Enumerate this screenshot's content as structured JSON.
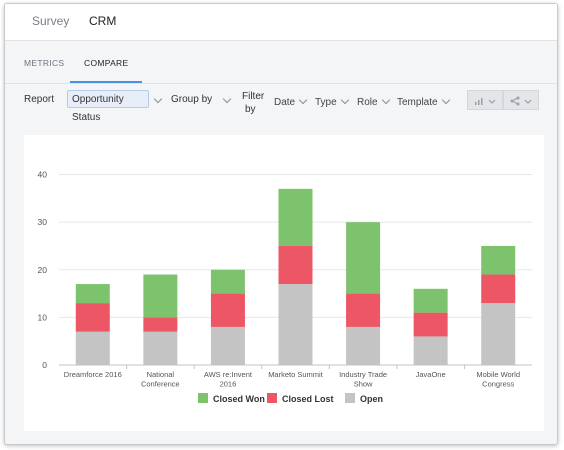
{
  "top_tabs": [
    "Survey",
    "CRM"
  ],
  "sub_tabs": [
    "METRICS",
    "COMPARE"
  ],
  "toolbar": {
    "report_label": "Report",
    "report_value": "Opportunity Status",
    "group_by_label": "Group by",
    "filter_label_line1": "Filter",
    "filter_label_line2": "by",
    "filters": [
      "Date",
      "Type",
      "Role",
      "Template"
    ]
  },
  "icons": [
    "bar-chart-icon",
    "share-icon",
    "chevron-down-icon"
  ],
  "colors": {
    "won": "#7dc36e",
    "lost": "#ec5665",
    "open": "#c4c4c4",
    "accent": "#4a90e2"
  },
  "chart_data": {
    "type": "bar",
    "stacked": true,
    "categories": [
      "Dreamforce 2016",
      "National Conference",
      "AWS re:Invent 2016",
      "Marketo Summit",
      "Industry Trade Show",
      "JavaOne",
      "Mobile World Congress"
    ],
    "category_lines": [
      [
        "Dreamforce 2016"
      ],
      [
        "National",
        "Conference"
      ],
      [
        "AWS re:Invent",
        "2016"
      ],
      [
        "Marketo Summit"
      ],
      [
        "Industry Trade",
        "Show"
      ],
      [
        "JavaOne"
      ],
      [
        "Mobile World",
        "Congress"
      ]
    ],
    "series": [
      {
        "name": "Open",
        "values": [
          7,
          7,
          8,
          17,
          8,
          6,
          13
        ]
      },
      {
        "name": "Closed Lost",
        "values": [
          6,
          3,
          7,
          8,
          7,
          5,
          6
        ]
      },
      {
        "name": "Closed Won",
        "values": [
          4,
          9,
          5,
          12,
          15,
          5,
          6
        ]
      }
    ],
    "legend": [
      "Closed Won",
      "Closed Lost",
      "Open"
    ],
    "yticks": [
      0,
      10,
      20,
      30,
      40
    ],
    "ylim": [
      0,
      42
    ],
    "grid": true,
    "legend_position": "bottom"
  }
}
